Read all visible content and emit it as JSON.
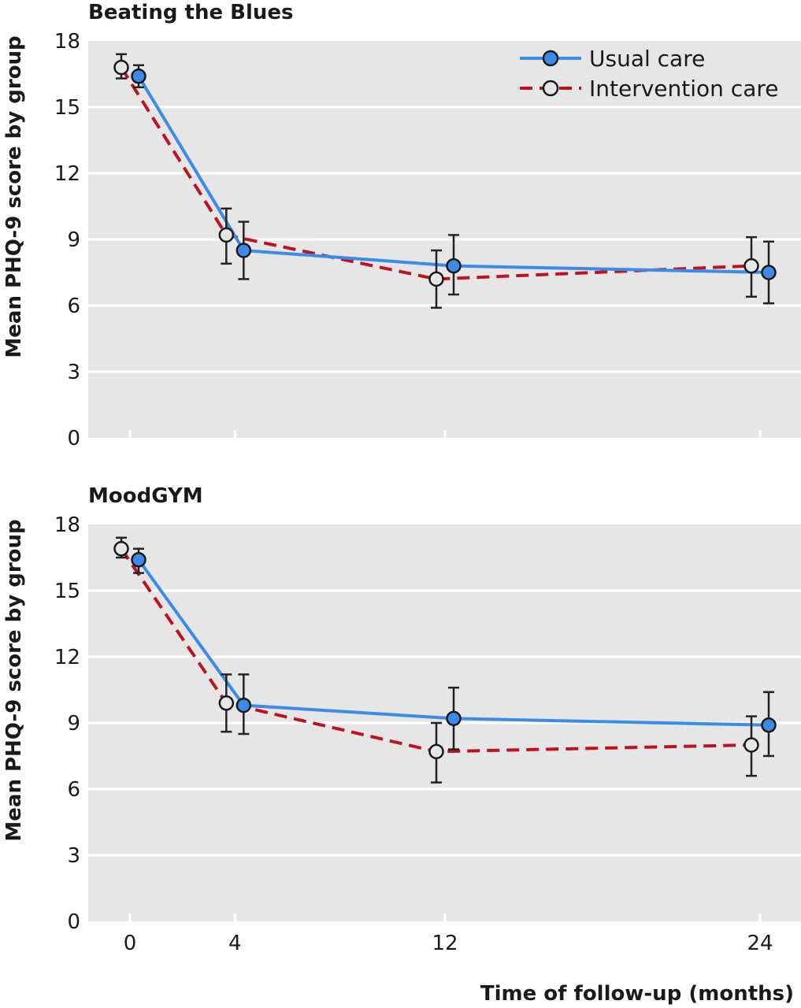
{
  "chart_data": [
    {
      "type": "line",
      "title": "Beating the Blues",
      "ylabel": "Mean PHQ-9 score by group",
      "xlabel": "",
      "ylim": [
        0,
        18
      ],
      "yticks": [
        "0",
        "3",
        "6",
        "9",
        "12",
        "15",
        "18"
      ],
      "x": [
        0,
        4,
        12,
        24
      ],
      "xticks": [],
      "grid": true,
      "legend": "top-right",
      "series": [
        {
          "name": "Usual care",
          "style": "solid",
          "color": "#3d8be8",
          "marker_fill": "#3d8be8",
          "values": [
            16.4,
            8.5,
            7.8,
            7.5
          ],
          "ci_low": [
            15.9,
            7.2,
            6.5,
            6.1
          ],
          "ci_high": [
            16.9,
            9.8,
            9.2,
            8.9
          ]
        },
        {
          "name": "Intervention care",
          "style": "dashed",
          "color": "#c0121d",
          "marker_fill": "#e6e6e6",
          "values": [
            16.8,
            9.2,
            7.2,
            7.8
          ],
          "ci_low": [
            16.3,
            7.9,
            5.9,
            6.4
          ],
          "ci_high": [
            17.4,
            10.4,
            8.5,
            9.1
          ]
        }
      ]
    },
    {
      "type": "line",
      "title": "MoodGYM",
      "ylabel": "Mean PHQ-9 score by group",
      "xlabel": "Time of follow-up (months)",
      "ylim": [
        0,
        18
      ],
      "yticks": [
        "0",
        "3",
        "6",
        "9",
        "12",
        "15",
        "18"
      ],
      "x": [
        0,
        4,
        12,
        24
      ],
      "xticks": [
        "0",
        "4",
        "12",
        "24"
      ],
      "grid": true,
      "legend": "",
      "series": [
        {
          "name": "Usual care",
          "style": "solid",
          "color": "#3d8be8",
          "marker_fill": "#3d8be8",
          "values": [
            16.4,
            9.8,
            9.2,
            8.9
          ],
          "ci_low": [
            15.8,
            8.5,
            7.8,
            7.5
          ],
          "ci_high": [
            16.9,
            11.2,
            10.6,
            10.4
          ]
        },
        {
          "name": "Intervention care",
          "style": "dashed",
          "color": "#c0121d",
          "marker_fill": "#e6e6e6",
          "values": [
            16.9,
            9.9,
            7.7,
            8.0
          ],
          "ci_low": [
            16.5,
            8.6,
            6.3,
            6.6
          ],
          "ci_high": [
            17.4,
            11.2,
            9.0,
            9.3
          ]
        }
      ]
    }
  ]
}
